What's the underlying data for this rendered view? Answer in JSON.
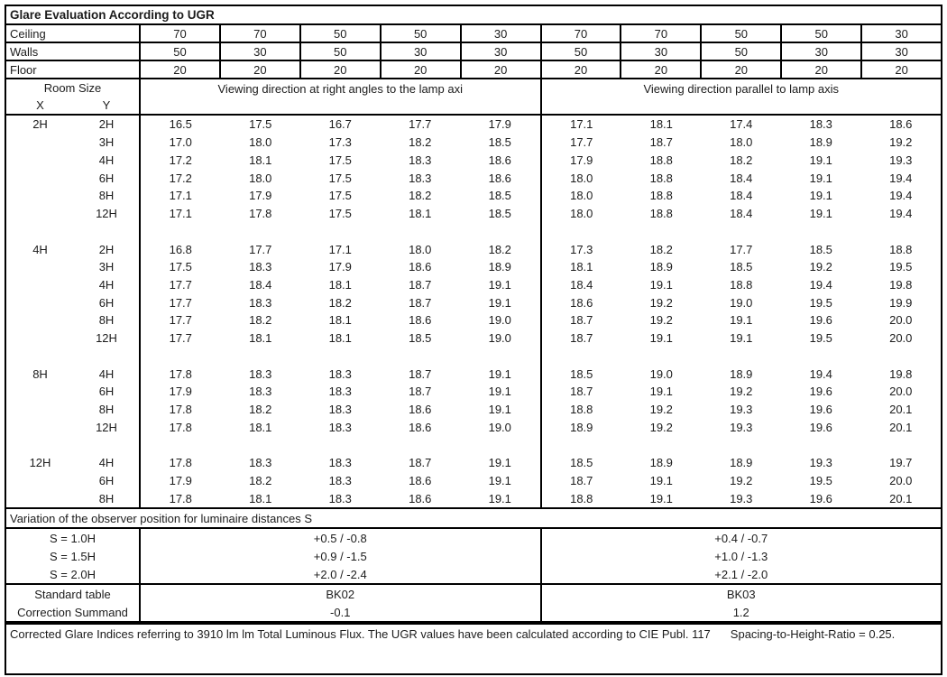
{
  "title": "Glare Evaluation According to UGR",
  "surfaces": {
    "rows": [
      {
        "label": "Ceiling",
        "values": [
          "70",
          "70",
          "50",
          "50",
          "30",
          "70",
          "70",
          "50",
          "50",
          "30"
        ]
      },
      {
        "label": "Walls",
        "values": [
          "50",
          "30",
          "50",
          "30",
          "30",
          "50",
          "30",
          "50",
          "30",
          "30"
        ]
      },
      {
        "label": "Floor",
        "values": [
          "20",
          "20",
          "20",
          "20",
          "20",
          "20",
          "20",
          "20",
          "20",
          "20"
        ]
      }
    ]
  },
  "header": {
    "room_size": "Room Size",
    "x": "X",
    "y": "Y",
    "left_heading": "Viewing direction at right angles to the lamp axi",
    "right_heading": "Viewing direction parallel to lamp axis"
  },
  "blocks": [
    {
      "x": "2H",
      "rows": [
        {
          "y": "2H",
          "values": [
            "16.5",
            "17.5",
            "16.7",
            "17.7",
            "17.9",
            "17.1",
            "18.1",
            "17.4",
            "18.3",
            "18.6"
          ]
        },
        {
          "y": "3H",
          "values": [
            "17.0",
            "18.0",
            "17.3",
            "18.2",
            "18.5",
            "17.7",
            "18.7",
            "18.0",
            "18.9",
            "19.2"
          ]
        },
        {
          "y": "4H",
          "values": [
            "17.2",
            "18.1",
            "17.5",
            "18.3",
            "18.6",
            "17.9",
            "18.8",
            "18.2",
            "19.1",
            "19.3"
          ]
        },
        {
          "y": "6H",
          "values": [
            "17.2",
            "18.0",
            "17.5",
            "18.3",
            "18.6",
            "18.0",
            "18.8",
            "18.4",
            "19.1",
            "19.4"
          ]
        },
        {
          "y": "8H",
          "values": [
            "17.1",
            "17.9",
            "17.5",
            "18.2",
            "18.5",
            "18.0",
            "18.8",
            "18.4",
            "19.1",
            "19.4"
          ]
        },
        {
          "y": "12H",
          "values": [
            "17.1",
            "17.8",
            "17.5",
            "18.1",
            "18.5",
            "18.0",
            "18.8",
            "18.4",
            "19.1",
            "19.4"
          ]
        }
      ]
    },
    {
      "x": "4H",
      "rows": [
        {
          "y": "2H",
          "values": [
            "16.8",
            "17.7",
            "17.1",
            "18.0",
            "18.2",
            "17.3",
            "18.2",
            "17.7",
            "18.5",
            "18.8"
          ]
        },
        {
          "y": "3H",
          "values": [
            "17.5",
            "18.3",
            "17.9",
            "18.6",
            "18.9",
            "18.1",
            "18.9",
            "18.5",
            "19.2",
            "19.5"
          ]
        },
        {
          "y": "4H",
          "values": [
            "17.7",
            "18.4",
            "18.1",
            "18.7",
            "19.1",
            "18.4",
            "19.1",
            "18.8",
            "19.4",
            "19.8"
          ]
        },
        {
          "y": "6H",
          "values": [
            "17.7",
            "18.3",
            "18.2",
            "18.7",
            "19.1",
            "18.6",
            "19.2",
            "19.0",
            "19.5",
            "19.9"
          ]
        },
        {
          "y": "8H",
          "values": [
            "17.7",
            "18.2",
            "18.1",
            "18.6",
            "19.0",
            "18.7",
            "19.2",
            "19.1",
            "19.6",
            "20.0"
          ]
        },
        {
          "y": "12H",
          "values": [
            "17.7",
            "18.1",
            "18.1",
            "18.5",
            "19.0",
            "18.7",
            "19.1",
            "19.1",
            "19.5",
            "20.0"
          ]
        }
      ]
    },
    {
      "x": "8H",
      "rows": [
        {
          "y": "4H",
          "values": [
            "17.8",
            "18.3",
            "18.3",
            "18.7",
            "19.1",
            "18.5",
            "19.0",
            "18.9",
            "19.4",
            "19.8"
          ]
        },
        {
          "y": "6H",
          "values": [
            "17.9",
            "18.3",
            "18.3",
            "18.7",
            "19.1",
            "18.7",
            "19.1",
            "19.2",
            "19.6",
            "20.0"
          ]
        },
        {
          "y": "8H",
          "values": [
            "17.8",
            "18.2",
            "18.3",
            "18.6",
            "19.1",
            "18.8",
            "19.2",
            "19.3",
            "19.6",
            "20.1"
          ]
        },
        {
          "y": "12H",
          "values": [
            "17.8",
            "18.1",
            "18.3",
            "18.6",
            "19.0",
            "18.9",
            "19.2",
            "19.3",
            "19.6",
            "20.1"
          ]
        }
      ]
    },
    {
      "x": "12H",
      "rows": [
        {
          "y": "4H",
          "values": [
            "17.8",
            "18.3",
            "18.3",
            "18.7",
            "19.1",
            "18.5",
            "18.9",
            "18.9",
            "19.3",
            "19.7"
          ]
        },
        {
          "y": "6H",
          "values": [
            "17.9",
            "18.2",
            "18.3",
            "18.6",
            "19.1",
            "18.7",
            "19.1",
            "19.2",
            "19.5",
            "20.0"
          ]
        },
        {
          "y": "8H",
          "values": [
            "17.8",
            "18.1",
            "18.3",
            "18.6",
            "19.1",
            "18.8",
            "19.1",
            "19.3",
            "19.6",
            "20.1"
          ]
        }
      ]
    }
  ],
  "variation": {
    "heading": "Variation of the observer position for luminaire distances S",
    "rows": [
      {
        "label": "S = 1.0H",
        "left": "+0.5 / -0.8",
        "right": "+0.4 / -0.7"
      },
      {
        "label": "S = 1.5H",
        "left": "+0.9 / -1.5",
        "right": "+1.0 / -1.3"
      },
      {
        "label": "S = 2.0H",
        "left": "+2.0 / -2.4",
        "right": "+2.1 / -2.0"
      }
    ]
  },
  "summary": {
    "rows": [
      {
        "label": "Standard table",
        "left": "BK02",
        "right": "BK03"
      },
      {
        "label": "Correction Summand",
        "left": "-0.1",
        "right": "1.2"
      }
    ]
  },
  "footer": {
    "text": "Corrected Glare Indices referring to 3910 lm lm Total Luminous Flux. The UGR values have been calculated according to CIE Publ. 117",
    "ratio": "Spacing-to-Height-Ratio = 0.25."
  }
}
